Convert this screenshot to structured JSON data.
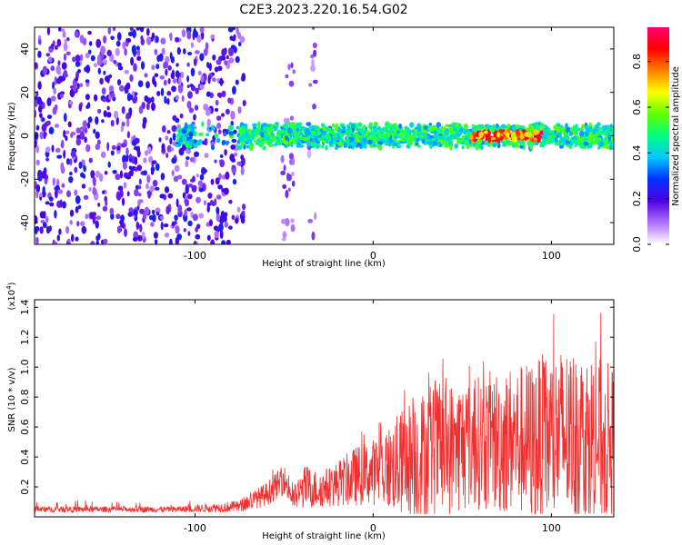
{
  "title": "C2E3.2023.220.16.54.G02",
  "chart_data": [
    {
      "type": "heatmap",
      "name": "spectrogram",
      "xlabel": "Height of straight line (km)",
      "ylabel": "Frequency (Hz)",
      "xlim": [
        -190,
        135
      ],
      "ylim": [
        -50,
        50
      ],
      "xticks": [
        -100,
        0,
        100
      ],
      "yticks": [
        -40,
        -20,
        0,
        20,
        40
      ],
      "colorbar": {
        "label": "Normalized spectral amplitude",
        "range": [
          0.0,
          0.95
        ],
        "ticks": [
          0.0,
          0.2,
          0.4,
          0.6,
          0.8
        ],
        "colors": [
          "#ffffff",
          "#b070ff",
          "#5000e0",
          "#0030ff",
          "#00c8ff",
          "#00ff80",
          "#60ff00",
          "#ffff00",
          "#ff8000",
          "#ff0000",
          "#ff0070"
        ]
      },
      "features": {
        "noise_region_x": [
          -190,
          -72
        ],
        "sparse_bands_x": [
          [
            -52,
            -44
          ],
          [
            -36,
            -32
          ]
        ],
        "signal_band_x": [
          -110,
          135
        ],
        "signal_center_hz": 0,
        "signal_halfwidth_hz": 5,
        "peak_amplitude_x": [
          55,
          95
        ]
      }
    },
    {
      "type": "line",
      "name": "snr",
      "xlabel": "Height of straight line (km)",
      "ylabel": "SNR (10 * v/v)",
      "yscale_label": "(x10",
      "yscale_exp": "4",
      "yscale_suffix": ")",
      "xlim": [
        -190,
        135
      ],
      "ylim": [
        0.0,
        1.45
      ],
      "xticks": [
        -100,
        0,
        100
      ],
      "yticks": [
        0.2,
        0.4,
        0.6,
        0.8,
        1.0,
        1.2,
        1.4
      ],
      "color": "#f03030",
      "series": [
        {
          "x": [
            -190,
            -170,
            -150,
            -130,
            -110,
            -90,
            -75,
            -60,
            -50,
            -45,
            -38,
            -30,
            -20,
            -10,
            0,
            10,
            20,
            30,
            40,
            50,
            60,
            70,
            80,
            90,
            100,
            110,
            120,
            130,
            135
          ],
          "y": [
            0.05,
            0.05,
            0.05,
            0.05,
            0.05,
            0.06,
            0.07,
            0.15,
            0.25,
            0.12,
            0.2,
            0.18,
            0.22,
            0.27,
            0.3,
            0.33,
            0.38,
            0.42,
            0.45,
            0.48,
            0.5,
            0.5,
            0.52,
            0.5,
            0.52,
            0.55,
            0.52,
            0.5,
            0.5
          ],
          "amplitude": [
            0.02,
            0.02,
            0.02,
            0.02,
            0.02,
            0.03,
            0.04,
            0.08,
            0.1,
            0.08,
            0.15,
            0.12,
            0.15,
            0.2,
            0.22,
            0.3,
            0.4,
            0.45,
            0.45,
            0.45,
            0.45,
            0.5,
            0.5,
            0.55,
            0.6,
            0.6,
            0.6,
            0.55,
            0.5
          ],
          "max": [
            0.1,
            0.12,
            0.1,
            0.1,
            0.1,
            0.13,
            0.15,
            0.3,
            0.35,
            0.25,
            0.35,
            0.3,
            0.45,
            0.55,
            0.65,
            0.78,
            0.95,
            1.0,
            1.1,
            1.1,
            1.1,
            1.2,
            1.3,
            1.25,
            1.38,
            1.2,
            1.45,
            1.35,
            1.1
          ]
        }
      ]
    }
  ]
}
